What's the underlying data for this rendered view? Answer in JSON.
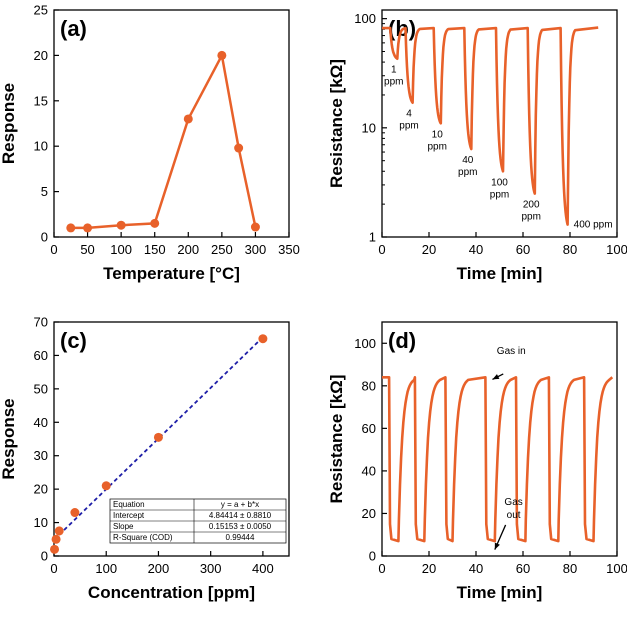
{
  "chart_data": [
    {
      "id": "a",
      "type": "line",
      "panel_label": "(a)",
      "xlabel": "Temperature [°C]",
      "ylabel": "Response",
      "xlim": [
        0,
        350
      ],
      "ylim": [
        0,
        25
      ],
      "xticks": [
        0,
        50,
        100,
        150,
        200,
        250,
        300,
        350
      ],
      "yticks": [
        0,
        5,
        10,
        15,
        20,
        25
      ],
      "x": [
        25,
        50,
        100,
        150,
        200,
        250,
        275,
        300
      ],
      "y": [
        1.0,
        1.0,
        1.3,
        1.5,
        13.0,
        20.0,
        9.8,
        1.1
      ],
      "color": "#e8612a",
      "markers": true
    },
    {
      "id": "b",
      "type": "line",
      "panel_label": "(b)",
      "xlabel": "Time [min]",
      "ylabel": "Resistance [kΩ]",
      "yscale": "log",
      "xlim": [
        0,
        100
      ],
      "ylim": [
        1,
        120
      ],
      "xticks": [
        0,
        20,
        40,
        60,
        80,
        100
      ],
      "yticks": [
        1,
        10,
        100
      ],
      "color": "#e8612a",
      "baseline": 82,
      "pulses": [
        {
          "start": 3.5,
          "end": 6.5,
          "min": 43,
          "label": "1 ppm",
          "label_lines": [
            "1",
            "ppm"
          ]
        },
        {
          "start": 10,
          "end": 13,
          "min": 17,
          "label": "4 ppm",
          "label_lines": [
            "4",
            "ppm"
          ]
        },
        {
          "start": 22,
          "end": 25,
          "min": 11,
          "label": "10 ppm",
          "label_lines": [
            "10",
            "ppm"
          ]
        },
        {
          "start": 35,
          "end": 38,
          "min": 6.4,
          "label": "40 ppm",
          "label_lines": [
            "40",
            "ppm"
          ]
        },
        {
          "start": 48.5,
          "end": 51.5,
          "min": 4.0,
          "label": "100 ppm",
          "label_lines": [
            "100",
            "ppm"
          ]
        },
        {
          "start": 62,
          "end": 65,
          "min": 2.5,
          "label": "200 ppm",
          "label_lines": [
            "200",
            "ppm"
          ]
        },
        {
          "start": 76,
          "end": 79,
          "min": 1.3,
          "label": "400 ppm",
          "label_lines": [
            "400 ppm"
          ]
        }
      ],
      "x_end": 92
    },
    {
      "id": "c",
      "type": "scatter",
      "panel_label": "(c)",
      "xlabel": "Concentration [ppm]",
      "ylabel": "Response",
      "xlim": [
        0,
        450
      ],
      "ylim": [
        0,
        70
      ],
      "xticks": [
        0,
        100,
        200,
        300,
        400
      ],
      "yticks": [
        0,
        10,
        20,
        30,
        40,
        50,
        60,
        70
      ],
      "x": [
        1,
        4,
        10,
        40,
        100,
        200,
        400
      ],
      "y": [
        2.0,
        5.0,
        7.5,
        13.0,
        21.0,
        35.5,
        65.0
      ],
      "color": "#e8612a",
      "fit": {
        "intercept": 4.84414,
        "slope": 0.15153,
        "color": "#1f1fa8"
      },
      "fit_table": {
        "header": [
          "Equation",
          "y = a + b*x"
        ],
        "rows": [
          [
            "Intercept",
            "4.84414 ± 0.8810"
          ],
          [
            "Slope",
            "0.15153 ± 0.0050"
          ],
          [
            "R-Square (COD)",
            "0.99444"
          ]
        ]
      }
    },
    {
      "id": "d",
      "type": "line",
      "panel_label": "(d)",
      "xlabel": "Time [min]",
      "ylabel": "Resistance [kΩ]",
      "xlim": [
        0,
        100
      ],
      "ylim": [
        0,
        110
      ],
      "xticks": [
        0,
        20,
        40,
        60,
        80,
        100
      ],
      "yticks": [
        0,
        20,
        40,
        60,
        80,
        100
      ],
      "color": "#e8612a",
      "baseline": 84,
      "low": 7,
      "pulses": [
        {
          "start": 3,
          "end": 7
        },
        {
          "start": 14,
          "end": 18
        },
        {
          "start": 27,
          "end": 30
        },
        {
          "start": 44,
          "end": 48
        },
        {
          "start": 57,
          "end": 61
        },
        {
          "start": 71,
          "end": 75
        },
        {
          "start": 86,
          "end": 90
        }
      ],
      "x_end": 98,
      "annotations": [
        {
          "text_lines": [
            "Gas in"
          ],
          "x": 55,
          "y": 95,
          "arrow_to": [
            47,
            83
          ]
        },
        {
          "text_lines": [
            "Gas",
            "out"
          ],
          "x": 56,
          "y": 24,
          "arrow_to": [
            48,
            3
          ]
        }
      ]
    }
  ]
}
